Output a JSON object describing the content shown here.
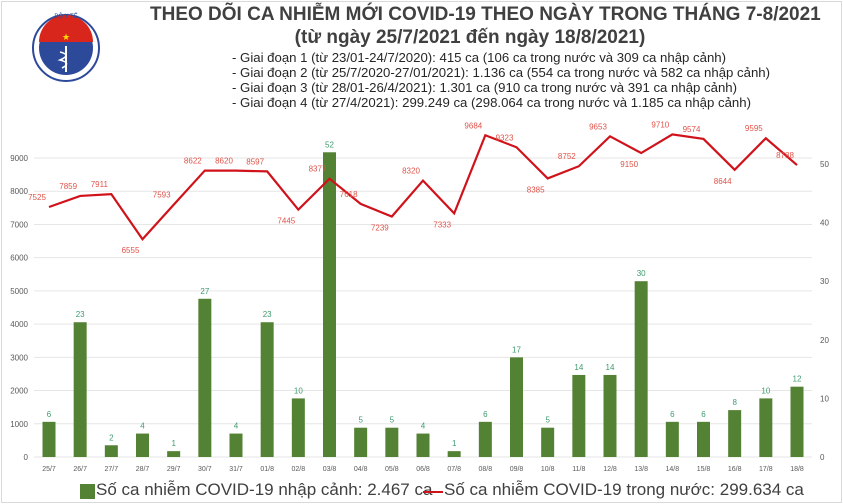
{
  "header": {
    "logo_text": "BỘ Y TẾ · MINISTRY OF HEALTH",
    "title": "THEO DÕI CA NHIỄM MỚI COVID-19 THEO NGÀY TRONG THÁNG 7-8/2021",
    "subtitle": "(từ ngày 25/7/2021 đến ngày 18/8/2021)",
    "periods": [
      "- Giai đoạn 1 (từ 23/01-24/7/2020): 415 ca (106 ca trong nước và 309 ca nhập cảnh)",
      "- Giai đoạn 2 (từ 25/7/2020-27/01/2021): 1.136 ca (554 ca trong nước và 582 ca nhập cảnh)",
      "- Giai đoạn 3 (từ 28/01-26/4/2021): 1.301 ca (910 ca trong nước và 391 ca nhập cảnh)",
      "- Giai đoạn 4 (từ 27/4/2021): 299.249 ca (298.064 ca trong nước và 1.185 ca nhập cảnh)"
    ]
  },
  "chart_data": {
    "type": "bar+line",
    "categories": [
      "25/7",
      "26/7",
      "27/7",
      "28/7",
      "29/7",
      "30/7",
      "31/7",
      "01/8",
      "02/8",
      "03/8",
      "04/8",
      "05/8",
      "06/8",
      "07/8",
      "08/8",
      "09/8",
      "10/8",
      "11/8",
      "12/8",
      "13/8",
      "14/8",
      "15/8",
      "16/8",
      "17/8",
      "18/8"
    ],
    "series": [
      {
        "name": "Số ca nhiễm COVID-19 nhập cảnh: 2.467 ca",
        "type": "bar",
        "axis": "right",
        "color": "#548235",
        "values": [
          6,
          23,
          2,
          4,
          1,
          27,
          4,
          23,
          10,
          52,
          5,
          5,
          4,
          1,
          6,
          17,
          5,
          14,
          14,
          30,
          6,
          6,
          8,
          10,
          12
        ]
      },
      {
        "name": "Số ca nhiễm COVID-19 trong nước: 299.634 ca",
        "type": "line",
        "axis": "left",
        "color": "#d0121b",
        "values": [
          7525,
          7859,
          7911,
          6555,
          7593,
          8622,
          8620,
          8597,
          7445,
          8377,
          7618,
          7239,
          8320,
          7333,
          9684,
          9323,
          8385,
          8752,
          9653,
          9150,
          9710,
          9574,
          8644,
          9595,
          8788
        ]
      }
    ],
    "left_axis": {
      "ylim": [
        0,
        9000
      ],
      "ticks": [
        0,
        1000,
        2000,
        3000,
        4000,
        5000,
        6000,
        7000,
        8000,
        9000
      ]
    },
    "right_axis": {
      "ylim": [
        0,
        50
      ],
      "ticks": [
        0,
        10,
        20,
        30,
        40,
        50
      ]
    },
    "grid": true,
    "legend_placement": "bottom",
    "label_colors": {
      "bar": "#3e9b6e",
      "line": "#e0534a"
    }
  }
}
